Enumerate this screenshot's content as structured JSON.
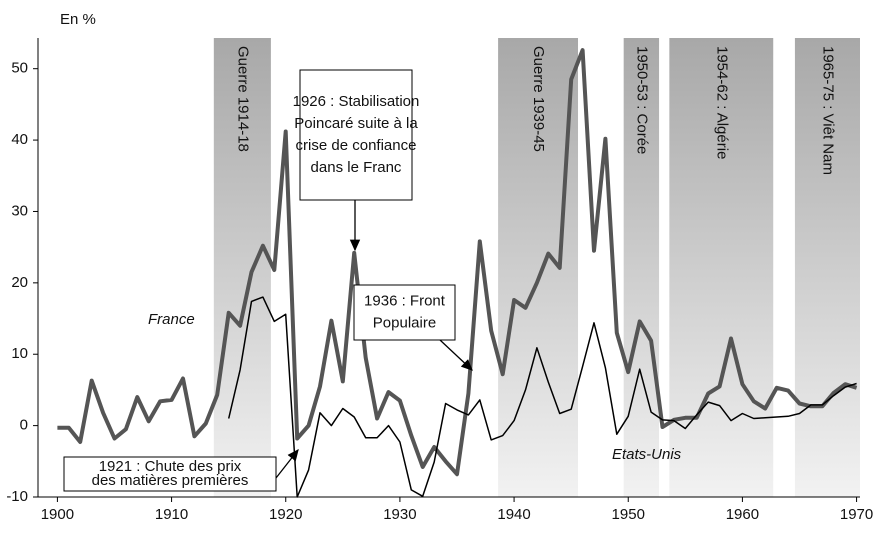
{
  "chart_data": {
    "type": "line",
    "y_unit_label": "En %",
    "x": [
      1900,
      1901,
      1902,
      1903,
      1904,
      1905,
      1906,
      1907,
      1908,
      1909,
      1910,
      1911,
      1912,
      1913,
      1914,
      1915,
      1916,
      1917,
      1918,
      1919,
      1920,
      1921,
      1922,
      1923,
      1924,
      1925,
      1926,
      1927,
      1928,
      1929,
      1930,
      1931,
      1932,
      1933,
      1934,
      1935,
      1936,
      1937,
      1938,
      1939,
      1940,
      1941,
      1942,
      1943,
      1944,
      1945,
      1946,
      1947,
      1948,
      1949,
      1950,
      1951,
      1952,
      1953,
      1954,
      1955,
      1956,
      1957,
      1958,
      1959,
      1960,
      1961,
      1962,
      1963,
      1964,
      1965,
      1966,
      1967,
      1968,
      1969,
      1970
    ],
    "series": [
      {
        "name": "France",
        "color": "#555555",
        "values": [
          -0.3,
          -0.3,
          -2.3,
          6.3,
          1.8,
          -1.8,
          -0.5,
          4,
          0.6,
          3.4,
          3.6,
          6.6,
          -1.5,
          0.3,
          4.3,
          15.8,
          14,
          21.5,
          25.2,
          21.8,
          41.2,
          -1.8,
          0,
          5.5,
          14.7,
          6.2,
          24.2,
          9.5,
          1,
          4.7,
          3.5,
          -1.4,
          -5.8,
          -3,
          -5,
          -6.8,
          4.5,
          25.8,
          13.3,
          7.2,
          17.6,
          16.5,
          20,
          24.1,
          22.1,
          48.5,
          52.6,
          24.5,
          40.2,
          13,
          7.5,
          14.6,
          11.9,
          -0.2,
          0.8,
          1.1,
          1.1,
          4.5,
          5.5,
          12.2,
          5.8,
          3.4,
          2.4,
          5.3,
          4.9,
          3.1,
          2.7,
          2.7,
          4.6,
          5.8,
          5.3
        ]
      },
      {
        "name": "Etats-Unis",
        "color": "#000000",
        "values": [
          null,
          null,
          null,
          null,
          null,
          null,
          null,
          null,
          null,
          null,
          null,
          null,
          null,
          null,
          null,
          1,
          7.8,
          17.4,
          18,
          14.6,
          15.6,
          -10,
          -6.2,
          1.8,
          0,
          2.4,
          1.2,
          -1.7,
          -1.7,
          0,
          -2.3,
          -9,
          -9.9,
          -5.1,
          3.1,
          2.2,
          1.5,
          3.6,
          -2,
          -1.4,
          0.7,
          5,
          10.9,
          6.1,
          1.7,
          2.3,
          8.3,
          14.4,
          8.1,
          -1.2,
          1.3,
          7.9,
          1.9,
          0.8,
          0.7,
          -0.4,
          1.5,
          3.3,
          2.8,
          0.7,
          1.7,
          1,
          1.1,
          1.2,
          1.3,
          1.7,
          2.9,
          2.9,
          4.2,
          5.4,
          5.9
        ]
      }
    ],
    "xlim": [
      1898.3,
      1970.3
    ],
    "ylim": [
      -10,
      54.3
    ],
    "xticks": [
      1900,
      1910,
      1920,
      1930,
      1940,
      1950,
      1960,
      1970
    ],
    "yticks": [
      -10,
      0,
      10,
      20,
      30,
      40,
      50
    ],
    "bands": [
      {
        "label": "Guerre 1914-18",
        "start": 1913.7,
        "end": 1918.7
      },
      {
        "label": "Guerre 1939-45",
        "start": 1938.6,
        "end": 1945.6
      },
      {
        "label": "1950-53 : Corée",
        "start": 1949.6,
        "end": 1952.7
      },
      {
        "label": "1954-62 : Algérie",
        "start": 1953.6,
        "end": 1962.7
      },
      {
        "label": "1965-75 : Viêt Nam",
        "start": 1964.6,
        "end": 1970.3
      }
    ],
    "annotations": [
      {
        "lines": [
          "1926 : Stabilisation",
          "Poincaré suite à la",
          "crise de confiance",
          "dans le Franc"
        ]
      },
      {
        "lines": [
          "1936 : Front",
          "Populaire"
        ]
      },
      {
        "lines": [
          "1921 : Chute des prix",
          "des matières premières"
        ]
      }
    ]
  }
}
